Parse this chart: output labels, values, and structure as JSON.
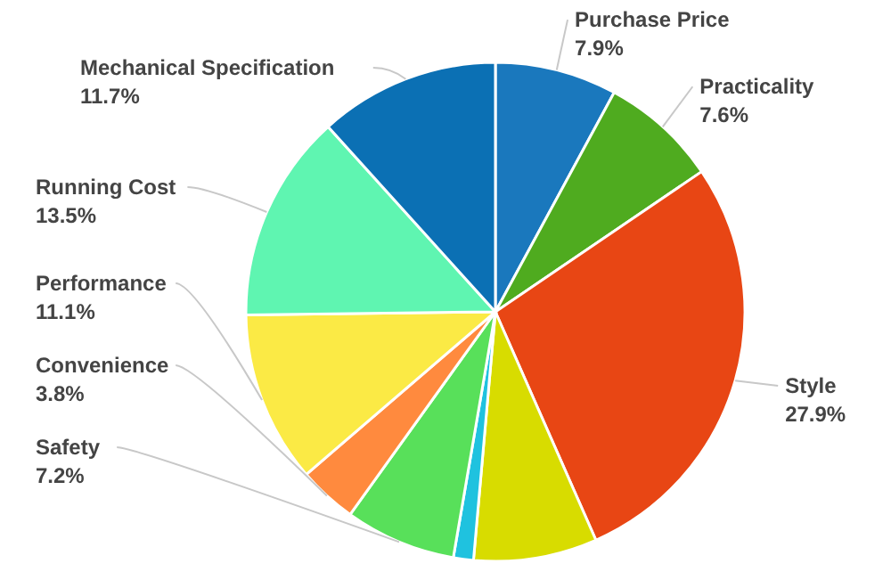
{
  "chart_data": {
    "type": "pie",
    "categories": [
      "Purchase Price",
      "Practicality",
      "Style",
      null,
      null,
      "Safety",
      "Convenience",
      "Performance",
      "Running Cost",
      "Mechanical Specification"
    ],
    "values": [
      7.9,
      7.6,
      27.9,
      8.0,
      1.3,
      7.2,
      3.8,
      11.1,
      13.5,
      11.7
    ],
    "value_labels": [
      "7.9%",
      "7.6%",
      "27.9%",
      null,
      null,
      "7.2%",
      "3.8%",
      "11.1%",
      "13.5%",
      "11.7%"
    ],
    "colors": [
      "#1a78bd",
      "#4fab1f",
      "#e84614",
      "#d8dc00",
      "#1fc2df",
      "#58e05a",
      "#ff8a3e",
      "#fbea45",
      "#5ff5b1",
      "#0b70b4"
    ],
    "legend": false
  }
}
